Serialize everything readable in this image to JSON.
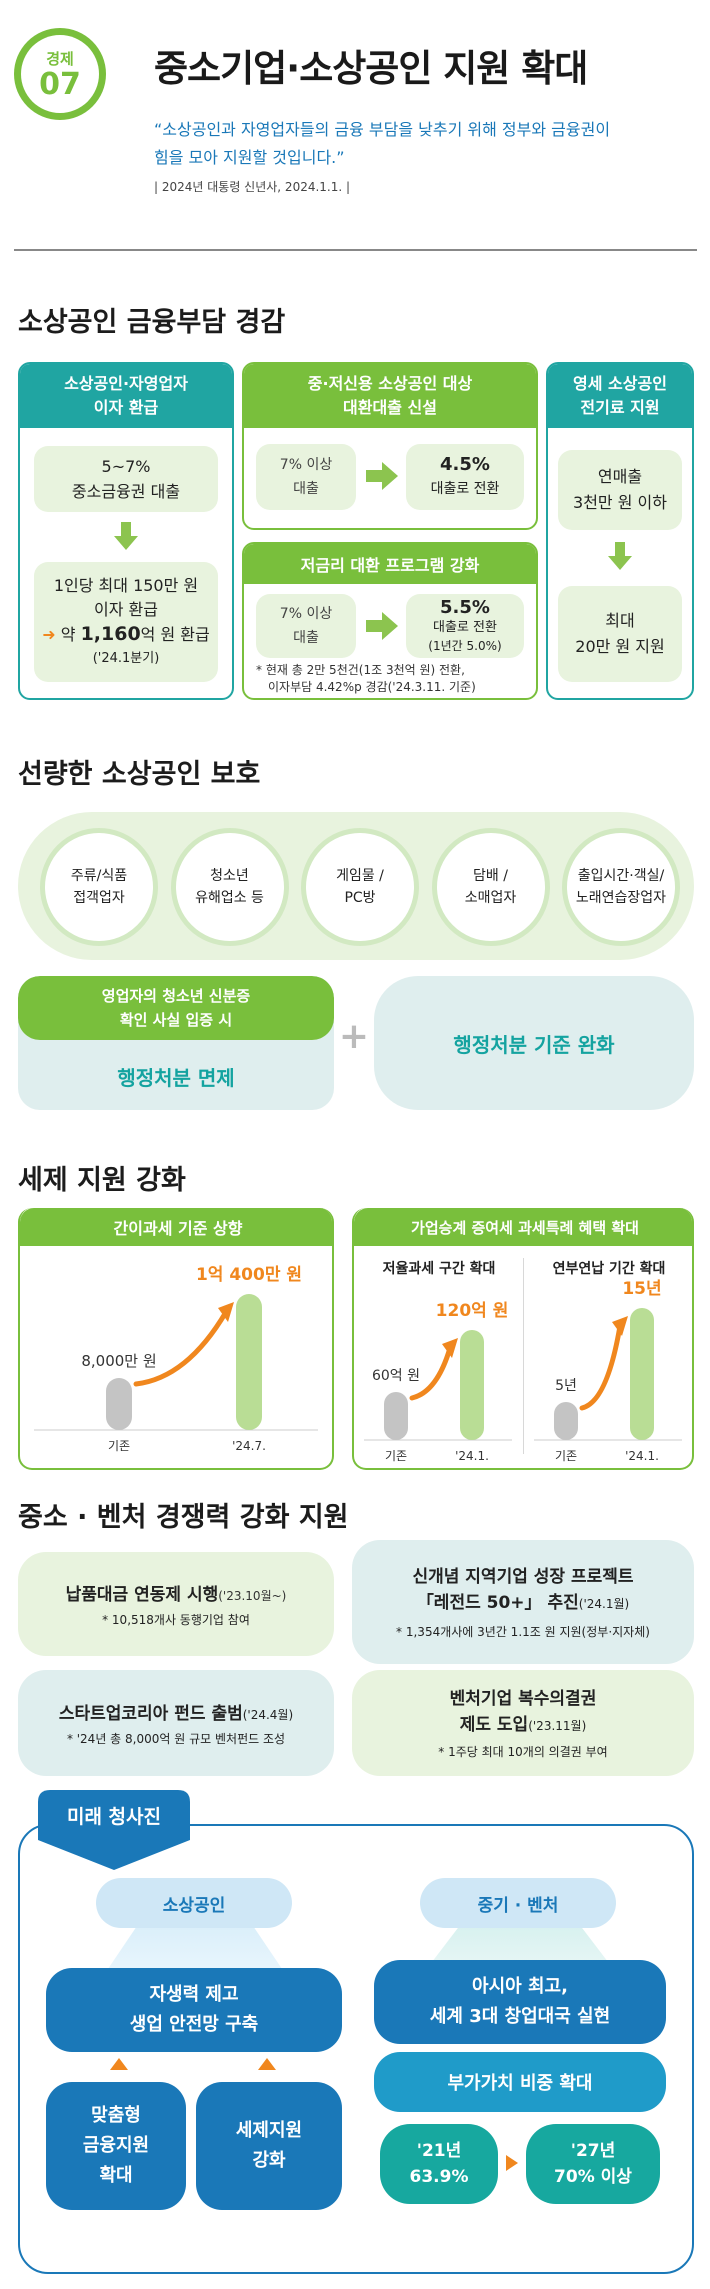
{
  "header": {
    "badge_category": "경제",
    "badge_number": "07",
    "title": "중소기업·소상공인 지원 확대",
    "quote_line1": "“소상공인과 자영업자들의 금융 부담을 낮추기 위해 정부와 금융권이",
    "quote_line2": "힘을 모아 지원할 것입니다.”",
    "source": "| 2024년 대통령 신년사, 2024.1.1. |"
  },
  "finance": {
    "title": "소상공인 금융부담 경감",
    "col1": {
      "head_line1": "소상공인·자영업자",
      "head_line2": "이자 환급",
      "box1_line1": "5~7%",
      "box1_line2": "중소금융권 대출",
      "box2_line1": "1인당 최대 150만 원",
      "box2_line2": "이자 환급",
      "box2_line3_pre": "약 ",
      "box2_line3_num": "1,160",
      "box2_line3_post": "억 원 환급",
      "box2_line4": "('24.1분기)"
    },
    "col2a": {
      "head_line1": "중·저신용 소상공인 대상",
      "head_line2": "대환대출 신설",
      "left_line1": "7% 이상",
      "left_line2": "대출",
      "right_line1": "4.5%",
      "right_line2": "대출로 전환"
    },
    "col2b": {
      "head": "저금리 대환 프로그램 강화",
      "left_line1": "7% 이상",
      "left_line2": "대출",
      "right_line1": "5.5%",
      "right_line2": "대출로 전환",
      "right_line3": "(1년간 5.0%)",
      "note_line1": "* 현재 총 2만 5천건(1조 3천억 원) 전환,",
      "note_line2": "이자부담 4.42%p 경감('24.3.11. 기준)"
    },
    "col3": {
      "head_line1": "영세 소상공인",
      "head_line2": "전기료 지원",
      "box1_line1": "연매출",
      "box1_line2": "3천만 원 이하",
      "box2_line1": "최대",
      "box2_line2": "20만 원 지원"
    }
  },
  "protect": {
    "title": "선량한 소상공인 보호",
    "circles": [
      {
        "line1": "주류/식품",
        "line2": "접객업자"
      },
      {
        "line1": "청소년",
        "line2": "유해업소 등"
      },
      {
        "line1": "게임물 /",
        "line2": "PC방"
      },
      {
        "line1": "담배 /",
        "line2": "소매업자"
      },
      {
        "line1": "출입시간·객실/",
        "line2": "노래연습장업자"
      }
    ],
    "left_head_line1": "영업자의 청소년 신분증",
    "left_head_line2": "확인 사실 입증 시",
    "left_body": "행정처분 면제",
    "plus": "+",
    "right_body": "행정처분 기준 완화"
  },
  "tax": {
    "title": "세제 지원 강화",
    "left_head": "간이과세 기준 상향",
    "right_head": "가업승계 증여세 과세특례 혜택 확대",
    "sub1": "저율과세 구간 확대",
    "sub2": "연부연납 기간 확대",
    "chart1": {
      "before_label": "8,000만 원",
      "after_label": "1억 400만 원",
      "x_before": "기존",
      "x_after": "'24.7."
    },
    "chart2": {
      "before_label": "60억 원",
      "after_label": "120억 원",
      "x_before": "기존",
      "x_after": "'24.1."
    },
    "chart3": {
      "before_label": "5년",
      "after_label": "15년",
      "x_before": "기존",
      "x_after": "'24.1."
    }
  },
  "venture": {
    "title": "중소 · 벤처 경쟁력 강화 지원",
    "box1_main": "납품대금 연동제 시행",
    "box1_date": "('23.10월~)",
    "box1_note": "* 10,518개사 동행기업 참여",
    "box2_line1": "신개념 지역기업 성장 프로젝트",
    "box2_line2": "「레전드 50+」 추진",
    "box2_date": "('24.1월)",
    "box2_note": "* 1,354개사에 3년간 1.1조 원 지원(정부·지자체)",
    "box3_main": "스타트업코리아 펀드 출범",
    "box3_date": "('24.4월)",
    "box3_note": "* '24년 총 8,000억 원 규모 벤처펀드 조성",
    "box4_line1": "벤처기업 복수의결권",
    "box4_line2": "제도 도입",
    "box4_date": "('23.11월)",
    "box4_note": "* 1주당 최대 10개의 의결권 부여"
  },
  "future": {
    "title": "미래 청사진",
    "left_head": "소상공인",
    "left_main_line1": "자생력 제고",
    "left_main_line2": "생업 안전망 구축",
    "left_sub1_line1": "맞춤형",
    "left_sub1_line2": "금융지원",
    "left_sub1_line3": "확대",
    "left_sub2_line1": "세제지원",
    "left_sub2_line2": "강화",
    "right_head": "중기 · 벤처",
    "right_main_line1": "아시아 최고,",
    "right_main_line2": "세계 3대 창업대국 실현",
    "right_sub": "부가가치 비중 확대",
    "right_from_line1": "'21년",
    "right_from_line2": "63.9%",
    "right_to_line1": "'27년",
    "right_to_line2": "70% 이상"
  },
  "colors": {
    "teal": "#20a5a2",
    "green": "#79bf3c",
    "orange": "#f0871e",
    "blue": "#1a78b8"
  }
}
